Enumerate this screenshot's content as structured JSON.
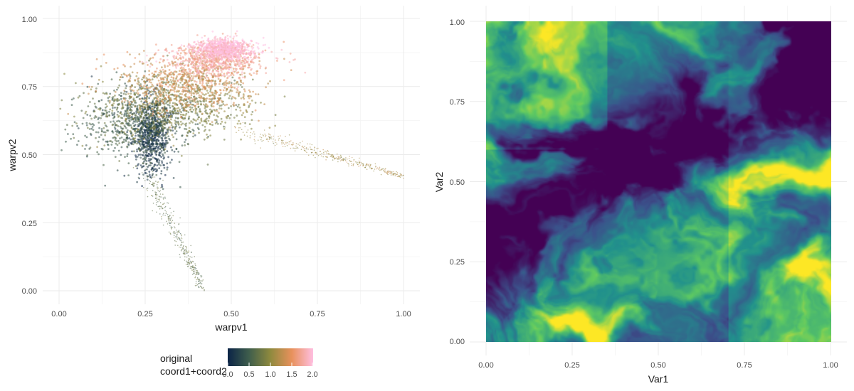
{
  "chart_data": [
    {
      "type": "scatter",
      "title": "",
      "xlabel": "warpv1",
      "ylabel": "warpv2",
      "xlim": [
        0,
        1
      ],
      "ylim": [
        0,
        1
      ],
      "x_ticks": [
        "0.00",
        "0.25",
        "0.50",
        "0.75",
        "1.00"
      ],
      "y_ticks": [
        "0.00",
        "0.25",
        "0.50",
        "0.75",
        "1.00"
      ],
      "grid": true,
      "color_scale": {
        "title_line1": "original",
        "title_line2": "coord1+coord2",
        "range": [
          0,
          2
        ],
        "ticks": [
          "0.0",
          "0.5",
          "1.0",
          "1.5",
          "2.0"
        ],
        "colors": [
          "#0b2447",
          "#3f5e4c",
          "#8f8a3e",
          "#e8915c",
          "#ffbfe1"
        ]
      },
      "clusters": [
        {
          "x": 0.27,
          "y": 0.57,
          "value": 0.15,
          "spread_x": 0.025,
          "spread_y": 0.07
        },
        {
          "x": 0.22,
          "y": 0.62,
          "value": 0.5,
          "spread_x": 0.08,
          "spread_y": 0.07
        },
        {
          "x": 0.33,
          "y": 0.68,
          "value": 0.9,
          "spread_x": 0.11,
          "spread_y": 0.06
        },
        {
          "x": 0.38,
          "y": 0.76,
          "value": 1.35,
          "spread_x": 0.1,
          "spread_y": 0.05
        },
        {
          "x": 0.45,
          "y": 0.85,
          "value": 1.75,
          "spread_x": 0.07,
          "spread_y": 0.03
        },
        {
          "x": 0.48,
          "y": 0.89,
          "value": 2.0,
          "spread_x": 0.04,
          "spread_y": 0.02
        }
      ],
      "trails": [
        {
          "x0": 0.5,
          "y0": 0.6,
          "x1": 1.0,
          "y1": 0.42,
          "value": 1.1
        },
        {
          "x0": 0.25,
          "y0": 0.45,
          "x1": 0.42,
          "y1": 0.0,
          "value": 0.7
        }
      ]
    },
    {
      "type": "heatmap",
      "title": "",
      "xlabel": "Var1",
      "ylabel": "Var2",
      "xlim": [
        0,
        1
      ],
      "ylim": [
        0,
        1
      ],
      "x_ticks": [
        "0.00",
        "0.25",
        "0.50",
        "0.75",
        "1.00"
      ],
      "y_ticks": [
        "0.00",
        "0.25",
        "0.50",
        "0.75",
        "1.00"
      ],
      "grid": true,
      "palette": "viridis",
      "colors": [
        "#440154",
        "#3b528b",
        "#21918c",
        "#5ec962",
        "#fde725"
      ]
    }
  ]
}
